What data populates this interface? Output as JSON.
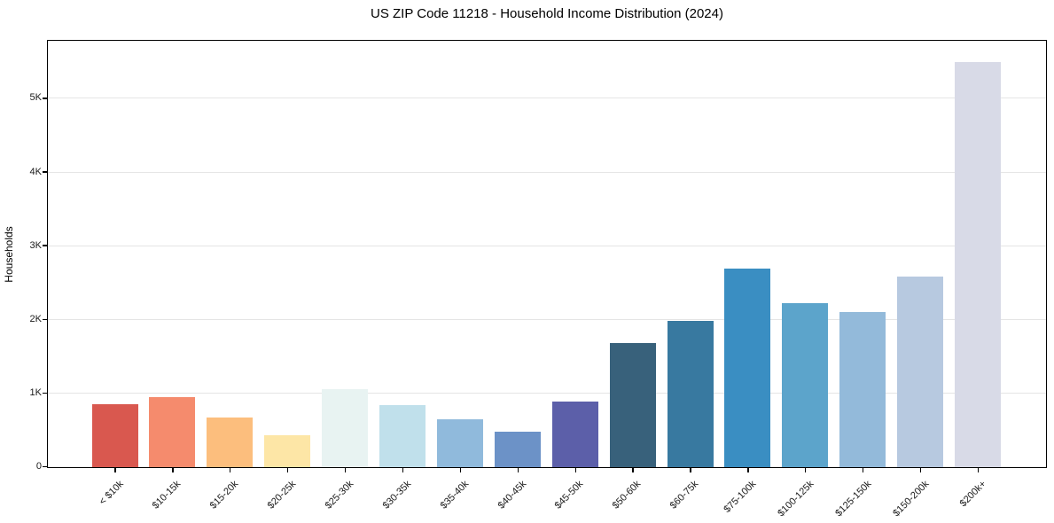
{
  "chart_data": {
    "type": "bar",
    "title": "US ZIP Code 11218 - Household Income Distribution (2024)",
    "ylabel": "Households",
    "xlabel": "",
    "categories": [
      "< $10k",
      "$10-15k",
      "$15-20k",
      "$20-25k",
      "$25-30k",
      "$30-35k",
      "$35-40k",
      "$40-45k",
      "$45-50k",
      "$50-60k",
      "$60-75k",
      "$75-100k",
      "$100-125k",
      "$125-150k",
      "$150-200k",
      "$200k+"
    ],
    "values": [
      855,
      950,
      670,
      430,
      1055,
      845,
      655,
      480,
      890,
      1680,
      1990,
      2700,
      2220,
      2110,
      2590,
      5500
    ],
    "bar_colors": [
      "#d9584f",
      "#f58b6d",
      "#fcbe7d",
      "#fde6a6",
      "#e8f3f2",
      "#c0e0eb",
      "#90badc",
      "#6c92c7",
      "#5c5fa9",
      "#38617b",
      "#3879a0",
      "#3a8ec2",
      "#5ca4cb",
      "#93bada",
      "#b7c9e0",
      "#d8dae7"
    ],
    "yticks": [
      {
        "value": 0,
        "label": "0"
      },
      {
        "value": 1000,
        "label": "1K"
      },
      {
        "value": 2000,
        "label": "2K"
      },
      {
        "value": 3000,
        "label": "3K"
      },
      {
        "value": 4000,
        "label": "4K"
      },
      {
        "value": 5000,
        "label": "5K"
      }
    ],
    "ylim": [
      0,
      5775
    ],
    "grid": "horizontal-only",
    "legend": "none",
    "axis_color": "#000000",
    "grid_color": "#e5e5e5",
    "background_color": "#ffffff"
  }
}
